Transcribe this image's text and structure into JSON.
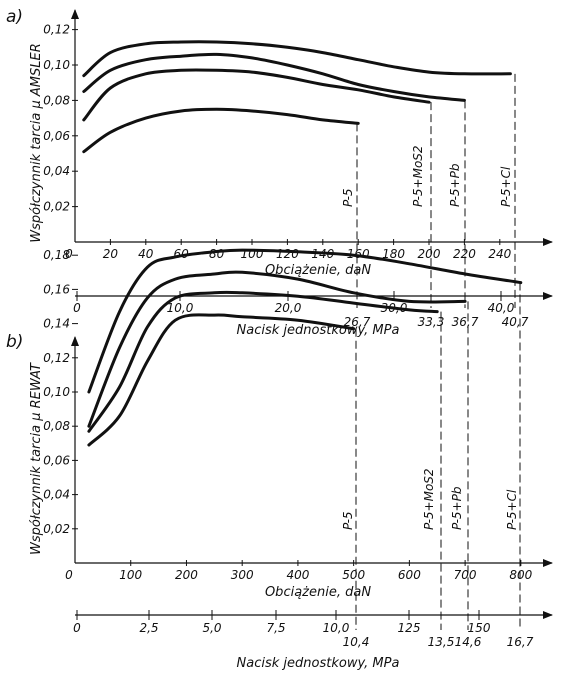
{
  "charts": [
    {
      "panel_label": "a)",
      "chart_data": {
        "type": "line",
        "ylabel": "Współczynnik tarcia μ AMSLER",
        "xlabel": "Obciążenie, daN",
        "x2label": "Nacisk jednostkowy, MPa",
        "ylim": [
          0,
          0.13
        ],
        "xlim": [
          0,
          250
        ],
        "y_ticks": [
          "0,02",
          "0,04",
          "0,06",
          "0,08",
          "0,10",
          "0,12"
        ],
        "x_ticks": [
          "0",
          "20",
          "40",
          "60",
          "80",
          "100",
          "120",
          "140",
          "160",
          "180",
          "200",
          "220",
          "240"
        ],
        "x2_ticks": [
          "0",
          "10,0",
          "20,0",
          "30,0",
          "40,0"
        ],
        "x2_marks": [
          "26,7",
          "33,3",
          "36,7",
          "40,7"
        ],
        "series": [
          {
            "name": "P-5",
            "end": 160,
            "x": [
              5,
              20,
              40,
              60,
              80,
              100,
              120,
              140,
              160
            ],
            "y": [
              0.051,
              0.062,
              0.07,
              0.074,
              0.075,
              0.074,
              0.072,
              0.069,
              0.067
            ]
          },
          {
            "name": "P-5+MoS2",
            "end": 200,
            "x": [
              5,
              20,
              40,
              60,
              80,
              100,
              120,
              140,
              160,
              180,
              200
            ],
            "y": [
              0.069,
              0.087,
              0.095,
              0.097,
              0.097,
              0.096,
              0.093,
              0.089,
              0.086,
              0.082,
              0.079
            ]
          },
          {
            "name": "P-5+Pb",
            "end": 220,
            "x": [
              5,
              20,
              40,
              60,
              80,
              100,
              120,
              140,
              160,
              180,
              200,
              220
            ],
            "y": [
              0.085,
              0.097,
              0.103,
              0.105,
              0.106,
              0.104,
              0.1,
              0.095,
              0.089,
              0.085,
              0.082,
              0.08
            ]
          },
          {
            "name": "P-5+Cl",
            "end": 246,
            "x": [
              5,
              20,
              40,
              60,
              80,
              100,
              120,
              140,
              160,
              180,
              200,
              220,
              246
            ],
            "y": [
              0.094,
              0.107,
              0.112,
              0.113,
              0.113,
              0.112,
              0.11,
              0.107,
              0.103,
              0.099,
              0.096,
              0.095,
              0.095
            ]
          }
        ]
      }
    },
    {
      "panel_label": "b)",
      "chart_data": {
        "type": "line",
        "ylabel": "Współczynnik tarcia μ REWAT",
        "xlabel": "Obciążenie, daN",
        "x2label": "Nacisk jednostkowy, MPa",
        "ylim": [
          0,
          0.19
        ],
        "xlim": [
          0,
          850
        ],
        "y_ticks": [
          "0,02",
          "0,04",
          "0,06",
          "0,08",
          "0,10",
          "0,12",
          "0,14",
          "0,16",
          "0,18"
        ],
        "x_ticks": [
          "0",
          "100",
          "200",
          "300",
          "400",
          "500",
          "600",
          "700",
          "800"
        ],
        "x2_ticks": [
          "0",
          "2,5",
          "5,0",
          "7,5",
          "10,0",
          "125",
          "150"
        ],
        "x2_marks": [
          "10,4",
          "13,5",
          "14,6",
          "16,7"
        ],
        "series": [
          {
            "name": "P-5",
            "end": 500,
            "x": [
              25,
              80,
              130,
              180,
              250,
              300,
              400,
              500
            ],
            "y": [
              0.069,
              0.086,
              0.118,
              0.142,
              0.145,
              0.144,
              0.142,
              0.137
            ]
          },
          {
            "name": "P-5+MoS2",
            "end": 650,
            "x": [
              25,
              80,
              130,
              180,
              250,
              300,
              400,
              500,
              600,
              650
            ],
            "y": [
              0.077,
              0.103,
              0.138,
              0.155,
              0.158,
              0.158,
              0.156,
              0.152,
              0.148,
              0.147
            ]
          },
          {
            "name": "P-5+Pb",
            "end": 700,
            "x": [
              25,
              80,
              130,
              180,
              250,
              300,
              400,
              500,
              600,
              700
            ],
            "y": [
              0.08,
              0.126,
              0.155,
              0.166,
              0.169,
              0.17,
              0.166,
              0.158,
              0.153,
              0.153
            ]
          },
          {
            "name": "P-5+Cl",
            "end": 800,
            "x": [
              25,
              80,
              130,
              180,
              250,
              300,
              400,
              500,
              600,
              700,
              800
            ],
            "y": [
              0.1,
              0.147,
              0.173,
              0.179,
              0.182,
              0.183,
              0.182,
              0.18,
              0.175,
              0.169,
              0.164
            ]
          }
        ]
      }
    }
  ]
}
